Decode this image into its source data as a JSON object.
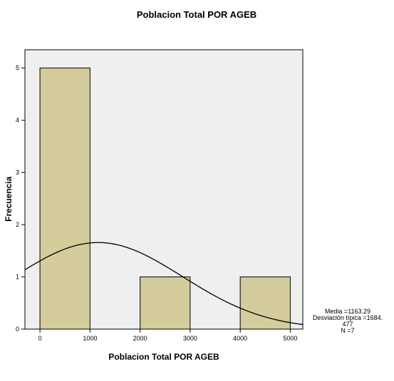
{
  "chart_data": {
    "type": "bar",
    "title": "Poblacion Total POR AGEB",
    "xlabel": "Poblacion Total POR AGEB",
    "ylabel": "Frecuencia",
    "bins": [
      {
        "from": 0,
        "to": 1000,
        "count": 5
      },
      {
        "from": 1000,
        "to": 2000,
        "count": 0
      },
      {
        "from": 2000,
        "to": 3000,
        "count": 1
      },
      {
        "from": 3000,
        "to": 4000,
        "count": 0
      },
      {
        "from": 4000,
        "to": 5000,
        "count": 1
      }
    ],
    "xticks": [
      "0",
      "1000",
      "2000",
      "3000",
      "4000",
      "5000"
    ],
    "yticks": [
      "0",
      "1",
      "2",
      "3",
      "4",
      "5"
    ],
    "xlim": [
      -300,
      5250
    ],
    "ylim": [
      0,
      5.35
    ],
    "normal_curve": {
      "mean": 1163.29,
      "sd": 1684.477,
      "n": 7,
      "bin_width": 1000
    },
    "bar_color": "#d4cc9c",
    "plot_background": "#efefef",
    "grid": false
  },
  "stats": {
    "mean_line": "Media =1163.29",
    "sd_line1": "Desviación típica =1684.",
    "sd_line2": "477",
    "n_line": "N =7"
  }
}
